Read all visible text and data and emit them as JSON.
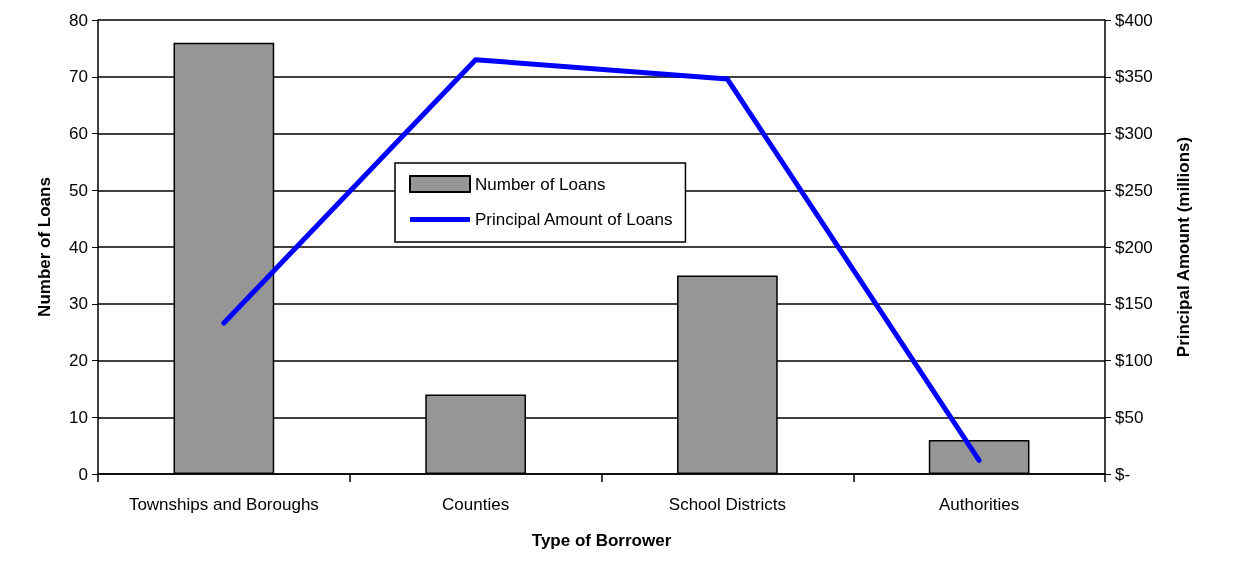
{
  "chart_data": {
    "type": "bar",
    "xlabel": "Type of Borrower",
    "ylabel": "Number of Loans",
    "y2label": "Principal Amount (millions)",
    "categories": [
      "Townships and Boroughs",
      "Counties",
      "School Districts",
      "Authorities"
    ],
    "series": [
      {
        "name": "Number of Loans",
        "color": "#969696",
        "values": [
          76,
          14,
          35,
          6
        ]
      },
      {
        "name": "Principal Amount of Loans",
        "type": "line",
        "axis": "y2",
        "color": "#0000ff",
        "values": [
          133,
          365,
          348,
          12
        ]
      }
    ],
    "ylim": [
      0,
      80
    ],
    "yticks": [
      0,
      10,
      20,
      30,
      40,
      50,
      60,
      70,
      80
    ],
    "y2lim": [
      0,
      400
    ],
    "y2ticks": [
      {
        "value": 0,
        "label": "$-"
      },
      {
        "value": 50,
        "label": "$50"
      },
      {
        "value": 100,
        "label": "$100"
      },
      {
        "value": 150,
        "label": "$150"
      },
      {
        "value": 200,
        "label": "$200"
      },
      {
        "value": 250,
        "label": "$250"
      },
      {
        "value": 300,
        "label": "$300"
      },
      {
        "value": 350,
        "label": "$350"
      },
      {
        "value": 400,
        "label": "$400"
      }
    ],
    "grid": "y",
    "legend": "center",
    "marker": "none",
    "line_style": "solid"
  }
}
